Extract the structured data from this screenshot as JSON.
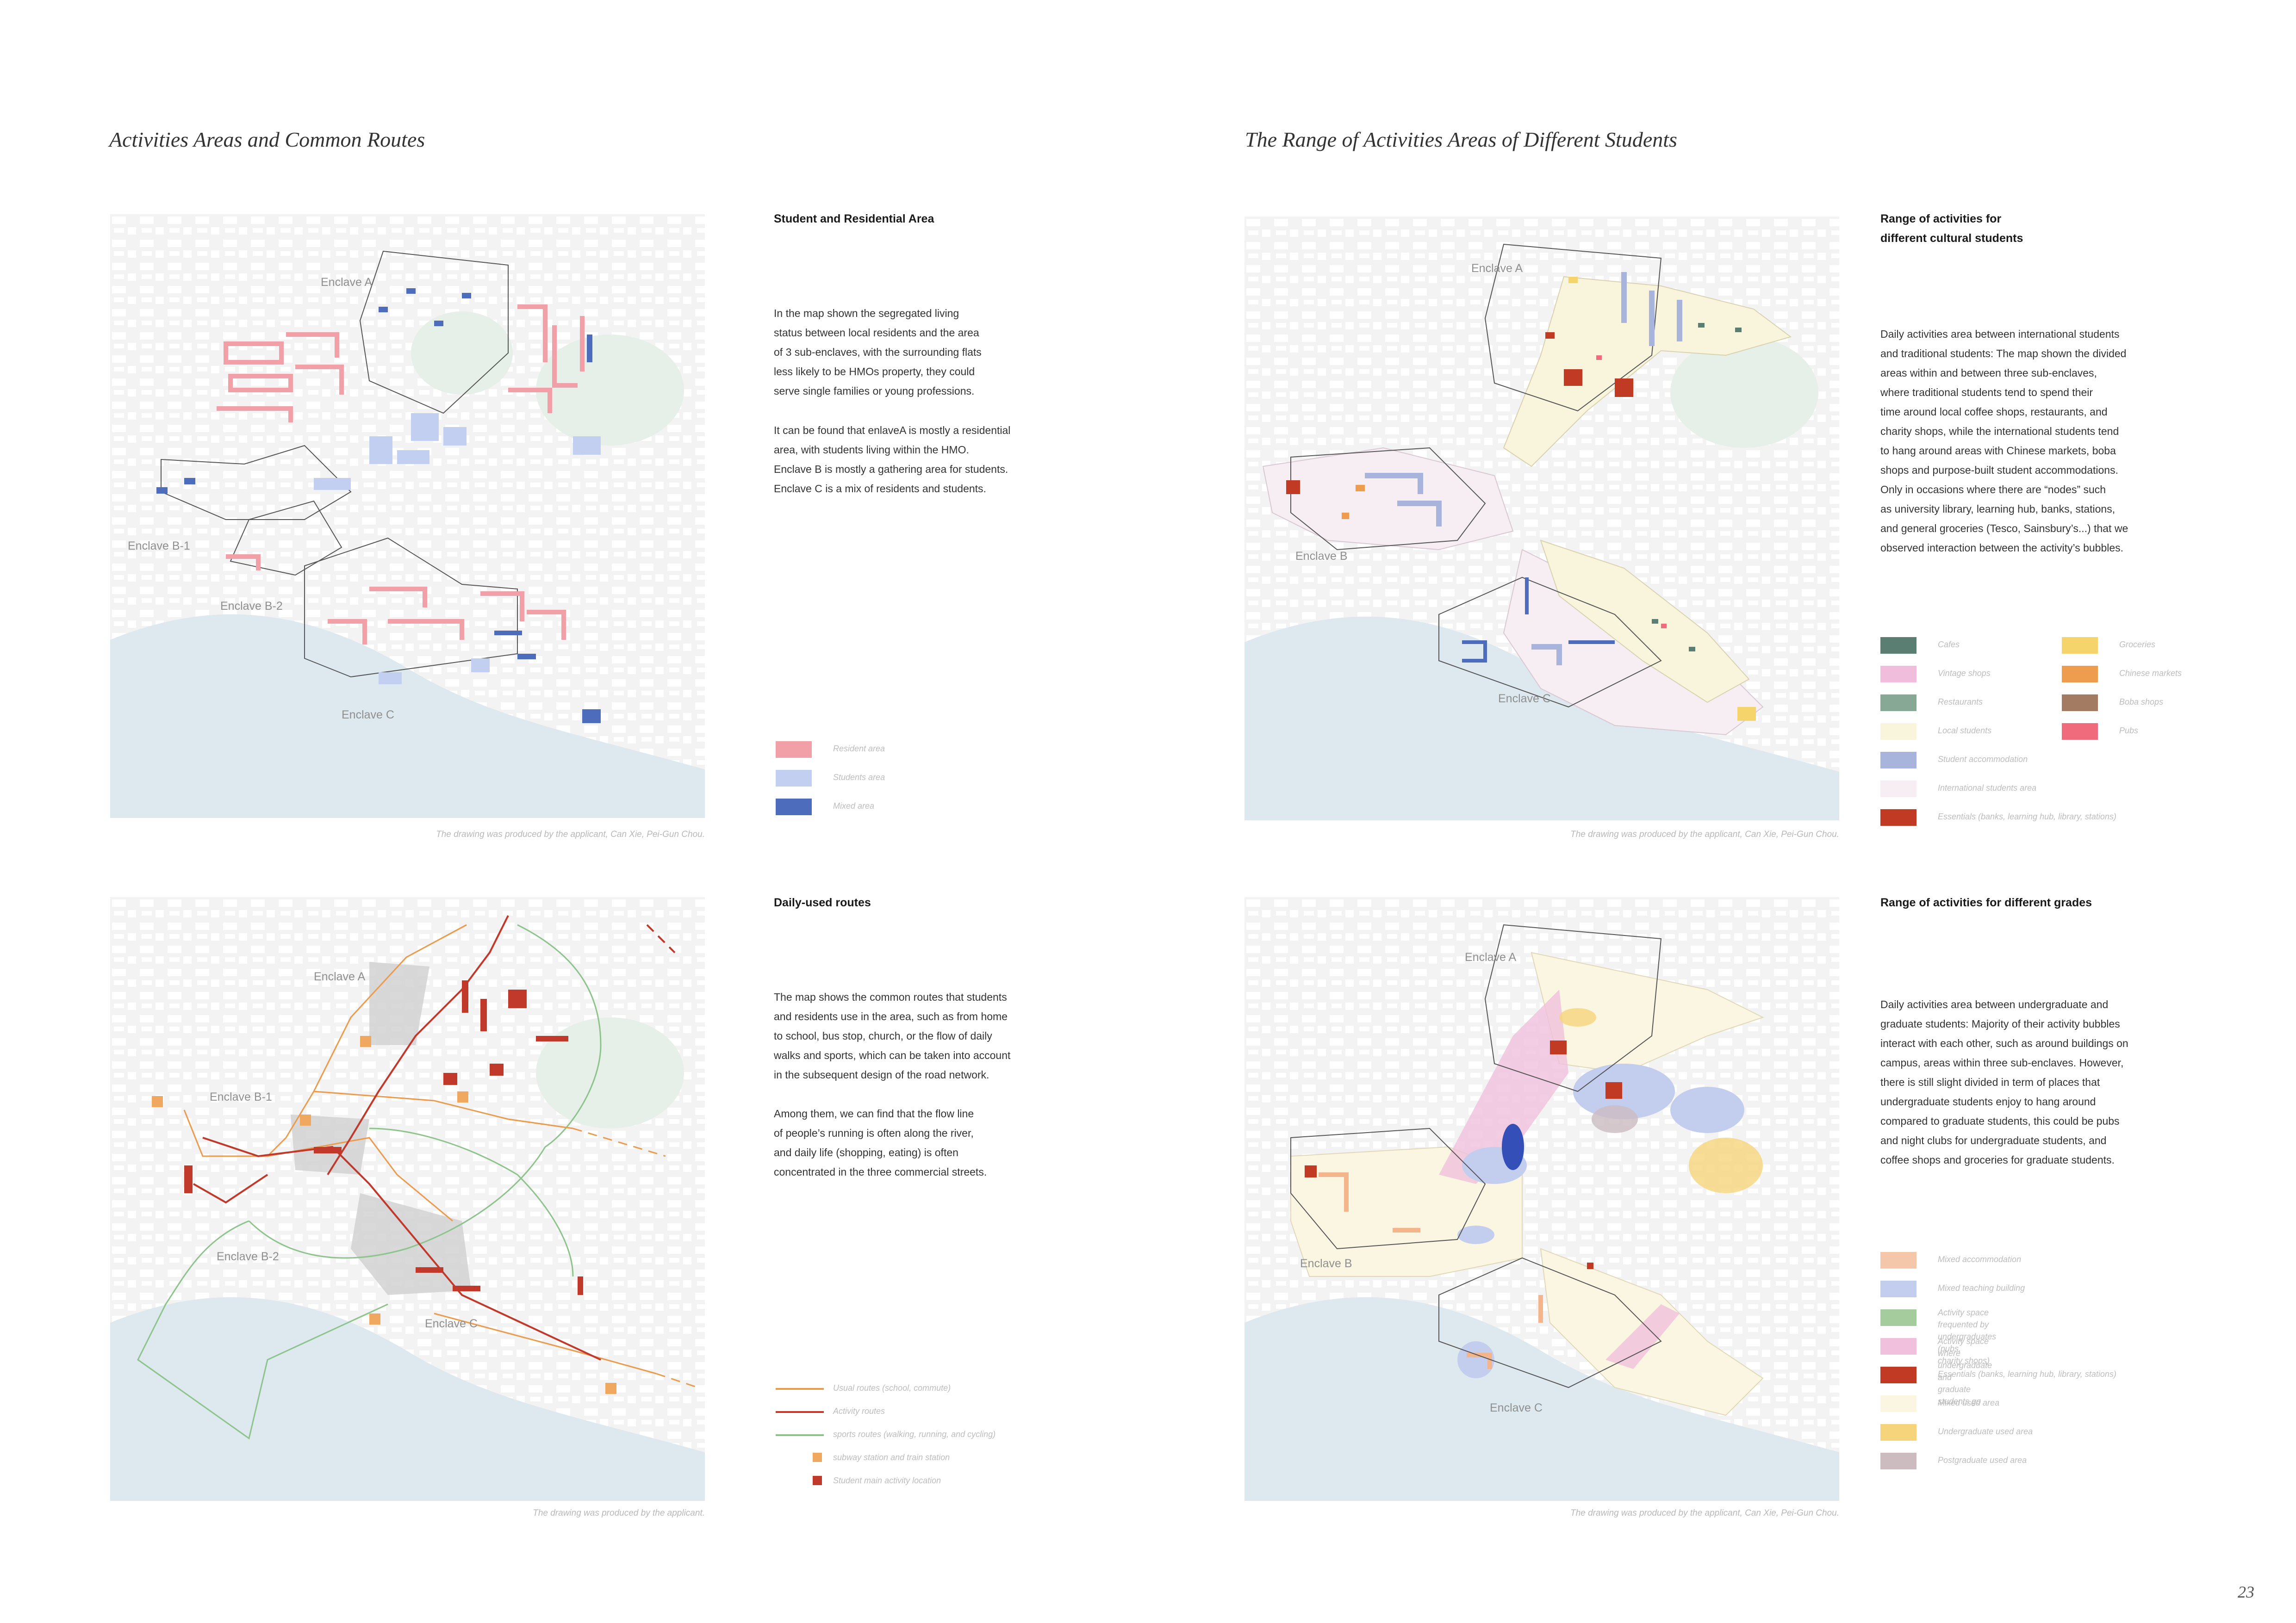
{
  "left_title": "Activities Areas and Common Routes",
  "right_title": "The Range of Activities Areas of Different Students",
  "page_number": "23",
  "panels": {
    "residential": {
      "heading": "Student and Residential Area",
      "paragraphs": [
        "In the map shown the segregated living\nstatus between local residents and the area\nof 3 sub-enclaves, with the surrounding flats\nless likely to be HMOs property, they could\nserve single families or young professions.",
        "It can be found that enlaveA is mostly a residential\narea, with students living within the HMO.\nEnclave B is mostly a gathering area for students.\nEnclave C is a mix of residents and students."
      ],
      "caption": "The drawing was produced by the applicant, Can Xie, Pei-Gun Chou.",
      "enclaves": [
        "Enclave A",
        "Enclave B-1",
        "Enclave B-2",
        "Enclave C"
      ],
      "legend": [
        {
          "label": "Resident area",
          "color": "#f2a0a8"
        },
        {
          "label": "Students area",
          "color": "#c3cff0"
        },
        {
          "label": "Mixed area",
          "color": "#4d6cbb"
        }
      ]
    },
    "cultural": {
      "heading": "Range of activities for\ndifferent cultural students",
      "paragraphs": [
        "Daily activities area between international students\nand traditional students: The map shown the divided\nareas within and between three sub-enclaves,\nwhere traditional students tend to spend their\ntime around local coffee shops, restaurants, and\ncharity shops, while the international students tend\nto hang around areas with Chinese markets, boba\nshops and purpose-built student accommodations.\nOnly in occasions where there are “nodes” such\nas university library, learning hub, banks, stations,\nand general groceries (Tesco, Sainsbury’s...) that we\nobserved interaction between the activity’s bubbles."
      ],
      "caption": "The drawing was produced by the applicant, Can Xie, Pei-Gun Chou.",
      "enclaves": [
        "Enclave A",
        "Enclave B",
        "Enclave C"
      ],
      "legend_left": [
        {
          "label": "Cafes",
          "color": "#5b7e73"
        },
        {
          "label": "Vintage shops",
          "color": "#f0bedc"
        },
        {
          "label": "Restaurants",
          "color": "#88a896"
        },
        {
          "label": "Local students",
          "color": "#f8f5dc"
        },
        {
          "label": "Student accommodation",
          "color": "#a8b4dc"
        },
        {
          "label": "International students area",
          "color": "#f6eef3"
        },
        {
          "label": "Essentials (banks, learning hub, library, stations)",
          "color": "#c03a24"
        }
      ],
      "legend_right": [
        {
          "label": "Groceries",
          "color": "#f6d46c"
        },
        {
          "label": "Chinese markets",
          "color": "#ee9c4e"
        },
        {
          "label": "Boba shops",
          "color": "#a37a62"
        },
        {
          "label": "Pubs",
          "color": "#f06c7c"
        }
      ]
    },
    "routes": {
      "heading": "Daily-used routes",
      "paragraphs": [
        "The map shows the common routes that students\nand residents use in the area, such as from home\nto school, bus stop, church, or the flow of daily\nwalks and sports, which can be taken into account\nin the subsequent design of the road network.",
        "Among them, we can find that the flow line\nof people’s running is often along the river,\nand daily life (shopping, eating) is often\nconcentrated in the three commercial streets."
      ],
      "caption": "The drawing was produced by the applicant.",
      "enclaves": [
        "Enclave A",
        "Enclave B-1",
        "Enclave B-2",
        "Enclave C"
      ],
      "legend_lines": [
        {
          "label": "Usual routes (school, commute)",
          "color": "#ec9a4c"
        },
        {
          "label": "Activity routes",
          "color": "#c0392b"
        },
        {
          "label": "sports routes (walking, running, and cycling)",
          "color": "#8cc48c"
        }
      ],
      "legend_points": [
        {
          "label": "subway station and train station",
          "color": "#f0a860"
        },
        {
          "label": "Student main activity location",
          "color": "#c0392b"
        }
      ]
    },
    "grades": {
      "heading": "Range of activities for different grades",
      "paragraphs": [
        "Daily activities area between undergraduate and\ngraduate students: Majority of their activity bubbles\ninteract with each other, such as around buildings on\ncampus, areas within three sub-enclaves. However,\nthere is still slight divided in term of places that\nundergraduate students enjoy to hang around\ncompared to graduate students, this could be pubs\nand night clubs for undergraduate students, and\ncoffee shops and groceries for graduate students."
      ],
      "caption": "The drawing was produced by the applicant, Can Xie, Pei-Gun Chou.",
      "enclaves": [
        "Enclave A",
        "Enclave B",
        "Enclave C"
      ],
      "legend": [
        {
          "label": "Mixed accommodation",
          "color": "#f4c7aa"
        },
        {
          "label": "Mixed teaching building",
          "color": "#c3cdee"
        },
        {
          "label": "Activity space frequented by undergraduates (pubs,\ncharity shops)",
          "color": "#a4cc9c"
        },
        {
          "label": "Activity space where undergraduate and\ngraduate students go",
          "color": "#f0c0dc"
        },
        {
          "label": "Essentials (banks, learning hub, library, stations)",
          "color": "#c03a24"
        },
        {
          "label": "Mixed used area",
          "color": "#fbf6e2"
        },
        {
          "label": "Undergraduate used area",
          "color": "#f6d47c"
        },
        {
          "label": "Postgraduate used area",
          "color": "#ccbcc0"
        }
      ]
    }
  }
}
